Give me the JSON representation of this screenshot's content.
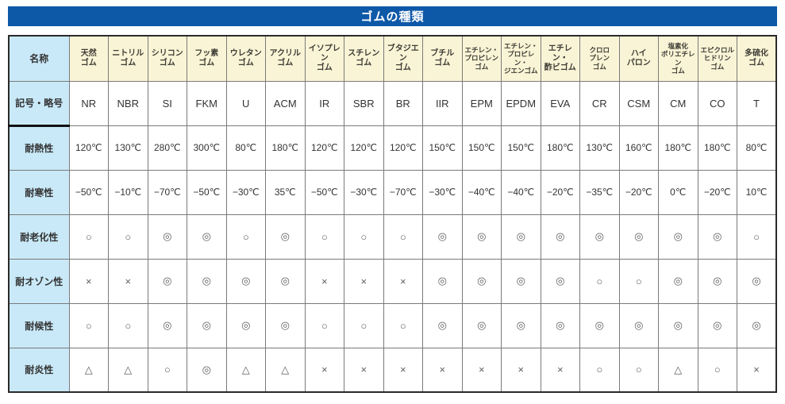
{
  "title": "ゴムの種類",
  "colors": {
    "title_bar": "#0e58a8",
    "header_bg": "#faf4d6",
    "label_bg": "#c9e9f8",
    "grid_line": "#7a7a7a",
    "outer_border": "#2a2a2a",
    "thick_divider": "#111111"
  },
  "table": {
    "row_labels": [
      "名称",
      "記号・略号",
      "耐熱性",
      "耐寒性",
      "耐老化性",
      "耐オゾン性",
      "耐候性",
      "耐炎性"
    ],
    "columns": [
      {
        "name": "天然\nゴム",
        "code": "NR",
        "heat": "120℃",
        "cold": "−50℃",
        "aging": "○",
        "ozone": "×",
        "weather": "○",
        "flame": "△"
      },
      {
        "name": "ニトリル\nゴム",
        "code": "NBR",
        "heat": "130℃",
        "cold": "−10℃",
        "aging": "○",
        "ozone": "×",
        "weather": "○",
        "flame": "△"
      },
      {
        "name": "シリコン\nゴム",
        "code": "SI",
        "heat": "280℃",
        "cold": "−70℃",
        "aging": "◎",
        "ozone": "◎",
        "weather": "◎",
        "flame": "○"
      },
      {
        "name": "フッ素\nゴム",
        "code": "FKM",
        "heat": "300℃",
        "cold": "−50℃",
        "aging": "◎",
        "ozone": "◎",
        "weather": "◎",
        "flame": "◎"
      },
      {
        "name": "ウレタン\nゴム",
        "code": "U",
        "heat": "80℃",
        "cold": "−30℃",
        "aging": "○",
        "ozone": "◎",
        "weather": "◎",
        "flame": "△"
      },
      {
        "name": "アクリル\nゴム",
        "code": "ACM",
        "heat": "180℃",
        "cold": "35℃",
        "aging": "◎",
        "ozone": "◎",
        "weather": "◎",
        "flame": "△"
      },
      {
        "name": "イソプレン\nゴム",
        "code": "IR",
        "heat": "120℃",
        "cold": "−50℃",
        "aging": "○",
        "ozone": "×",
        "weather": "○",
        "flame": "×"
      },
      {
        "name": "スチレン\nゴム",
        "code": "SBR",
        "heat": "120℃",
        "cold": "−30℃",
        "aging": "○",
        "ozone": "×",
        "weather": "○",
        "flame": "×"
      },
      {
        "name": "ブタジエン\nゴム",
        "code": "BR",
        "heat": "120℃",
        "cold": "−70℃",
        "aging": "○",
        "ozone": "×",
        "weather": "○",
        "flame": "×"
      },
      {
        "name": "ブチル\nゴム",
        "code": "IIR",
        "heat": "150℃",
        "cold": "−30℃",
        "aging": "◎",
        "ozone": "◎",
        "weather": "◎",
        "flame": "×"
      },
      {
        "name": "エチレン・\nプロピレン\nゴム",
        "code": "EPM",
        "heat": "150℃",
        "cold": "−40℃",
        "aging": "◎",
        "ozone": "◎",
        "weather": "◎",
        "flame": "×"
      },
      {
        "name": "エチレン・\nプロピレン・\nジエンゴム",
        "code": "EPDM",
        "heat": "150℃",
        "cold": "−40℃",
        "aging": "◎",
        "ozone": "◎",
        "weather": "◎",
        "flame": "×"
      },
      {
        "name": "エチレン・\n酢ビゴム",
        "code": "EVA",
        "heat": "180℃",
        "cold": "−20℃",
        "aging": "◎",
        "ozone": "◎",
        "weather": "◎",
        "flame": "×"
      },
      {
        "name": "クロロ\nプレン\nゴム",
        "code": "CR",
        "heat": "130℃",
        "cold": "−35℃",
        "aging": "◎",
        "ozone": "○",
        "weather": "◎",
        "flame": "○"
      },
      {
        "name": "ハイ\nパロン",
        "code": "CSM",
        "heat": "160℃",
        "cold": "−20℃",
        "aging": "◎",
        "ozone": "○",
        "weather": "◎",
        "flame": "○"
      },
      {
        "name": "塩素化\nポリエチレン\nゴム",
        "code": "CM",
        "heat": "180℃",
        "cold": "0℃",
        "aging": "◎",
        "ozone": "◎",
        "weather": "◎",
        "flame": "△"
      },
      {
        "name": "エピクロル\nヒドリン\nゴム",
        "code": "CO",
        "heat": "180℃",
        "cold": "−20℃",
        "aging": "◎",
        "ozone": "◎",
        "weather": "◎",
        "flame": "○"
      },
      {
        "name": "多硫化\nゴム",
        "code": "T",
        "heat": "80℃",
        "cold": "10℃",
        "aging": "○",
        "ozone": "◎",
        "weather": "◎",
        "flame": "×"
      }
    ]
  }
}
